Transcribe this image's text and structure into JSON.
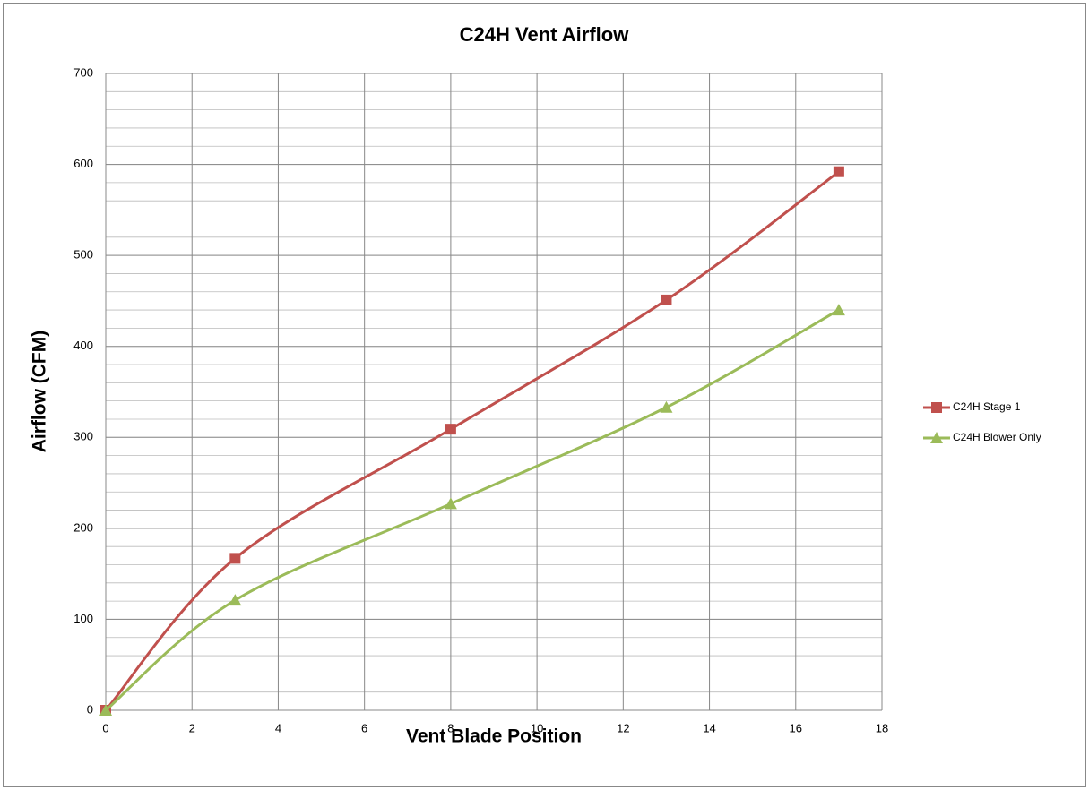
{
  "chart_data": {
    "type": "scatter",
    "title": "C24H Vent Airflow",
    "x_label": "Vent Blade Position",
    "y_label": "Airflow (CFM)",
    "xlim": [
      0,
      18
    ],
    "xticks": [
      0,
      2,
      4,
      6,
      8,
      10,
      12,
      14,
      16,
      18
    ],
    "ylim": [
      0,
      700
    ],
    "yticks": [
      0,
      100,
      200,
      300,
      400,
      500,
      600,
      700
    ],
    "y_minor_step": 20,
    "grid": true,
    "smooth": true,
    "legend": "right",
    "series": [
      {
        "name": "C24H Stage 1",
        "color": "#c0504d",
        "marker": "square",
        "x": [
          0,
          3,
          8,
          13,
          17
        ],
        "values": [
          0,
          167,
          309,
          451,
          592
        ]
      },
      {
        "name": "C24H Blower Only",
        "color": "#9bbb59",
        "marker": "triangle",
        "x": [
          0,
          3,
          8,
          13,
          17
        ],
        "values": [
          0,
          121,
          227,
          333,
          440
        ]
      }
    ]
  }
}
